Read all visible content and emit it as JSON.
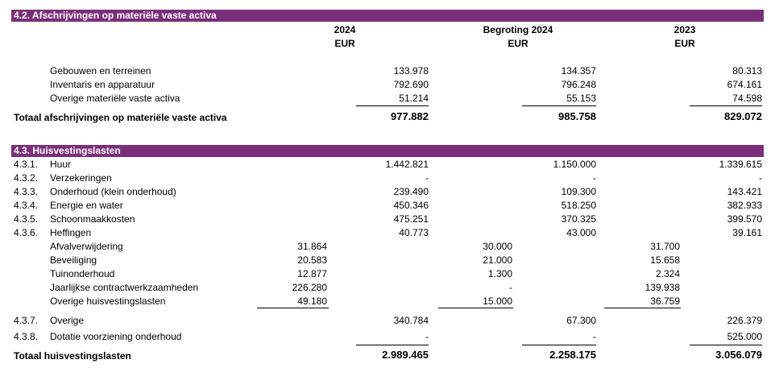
{
  "section1": {
    "title": "4.2.  Afschrijvingen op materiële vaste activa",
    "columns": [
      {
        "year": "2024",
        "unit": "EUR"
      },
      {
        "year": "Begroting 2024",
        "unit": "EUR"
      },
      {
        "year": "2023",
        "unit": "EUR"
      }
    ],
    "rows": [
      {
        "label": "Gebouwen en terreinen",
        "v": [
          "133.978",
          "134.357",
          "80.313"
        ]
      },
      {
        "label": "Inventaris en apparatuur",
        "v": [
          "792.690",
          "796.248",
          "674.161"
        ]
      },
      {
        "label": "Overige materiële vaste activa",
        "v": [
          "51.214",
          "55.153",
          "74.598"
        ]
      }
    ],
    "total": {
      "label": "Totaal afschrijvingen op materiële vaste activa",
      "v": [
        "977.882",
        "985.758",
        "829.072"
      ]
    }
  },
  "section2": {
    "title": "4.3.  Huisvestingslasten",
    "rows": [
      {
        "code": "4.3.1.",
        "label": "Huur",
        "v": [
          "1.442.821",
          "1.150.000",
          "1.339.615"
        ]
      },
      {
        "code": "4.3.2.",
        "label": "Verzekeringen",
        "v": [
          "-",
          "-",
          "-"
        ]
      },
      {
        "code": "4.3.3.",
        "label": "Onderhoud (klein onderhoud)",
        "v": [
          "239.490",
          "109.300",
          "143.421"
        ]
      },
      {
        "code": "4.3.4.",
        "label": "Energie en water",
        "v": [
          "450.346",
          "518.250",
          "382.933"
        ]
      },
      {
        "code": "4.3.5.",
        "label": "Schoonmaakkosten",
        "v": [
          "475.251",
          "370.325",
          "399.570"
        ]
      },
      {
        "code": "4.3.6.",
        "label": "Heffingen",
        "v": [
          "40.773",
          "43.000",
          "39.161"
        ]
      }
    ],
    "subrows": [
      {
        "label": "Afvalverwijdering",
        "v": [
          "31.864",
          "30.000",
          "31.700"
        ]
      },
      {
        "label": "Beveiliging",
        "v": [
          "20.583",
          "21.000",
          "15.658"
        ]
      },
      {
        "label": "Tuinonderhoud",
        "v": [
          "12.877",
          "1.300",
          "2.324"
        ]
      },
      {
        "label": "Jaarlijkse contractwerkzaamheden",
        "v": [
          "226.280",
          "-",
          "139.938"
        ]
      },
      {
        "label": "Overige huisvestingslasten",
        "v": [
          "49.180",
          "15.000",
          "36.759"
        ]
      }
    ],
    "rows2": [
      {
        "code": "4.3.7.",
        "label": "Overige",
        "v": [
          "340.784",
          "67.300",
          "226.379"
        ]
      },
      {
        "code": "4.3.8.",
        "label": "Dotatie voorziening onderhoud",
        "v": [
          "-",
          "-",
          "525.000"
        ]
      }
    ],
    "total": {
      "label": "Totaal huisvestingslasten",
      "v": [
        "2.989.465",
        "2.258.175",
        "3.056.079"
      ]
    }
  }
}
